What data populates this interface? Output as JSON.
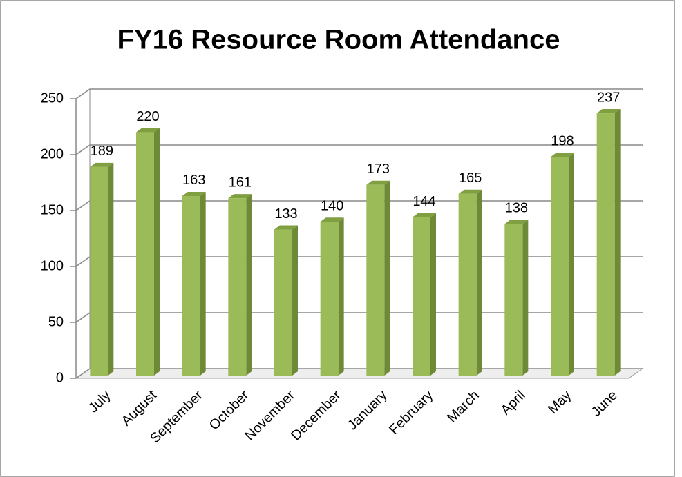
{
  "chart_data": {
    "type": "bar3d",
    "title": "FY16 Resource Room Attendance",
    "categories": [
      "July",
      "August",
      "September",
      "October",
      "November",
      "December",
      "January",
      "February",
      "March",
      "April",
      "May",
      "June"
    ],
    "values": [
      189,
      220,
      163,
      161,
      133,
      140,
      173,
      144,
      165,
      138,
      198,
      237
    ],
    "color": "#9bbb59",
    "ylim": [
      0,
      250
    ],
    "yticks": [
      0,
      50,
      100,
      150,
      200,
      250
    ],
    "grid": true
  }
}
